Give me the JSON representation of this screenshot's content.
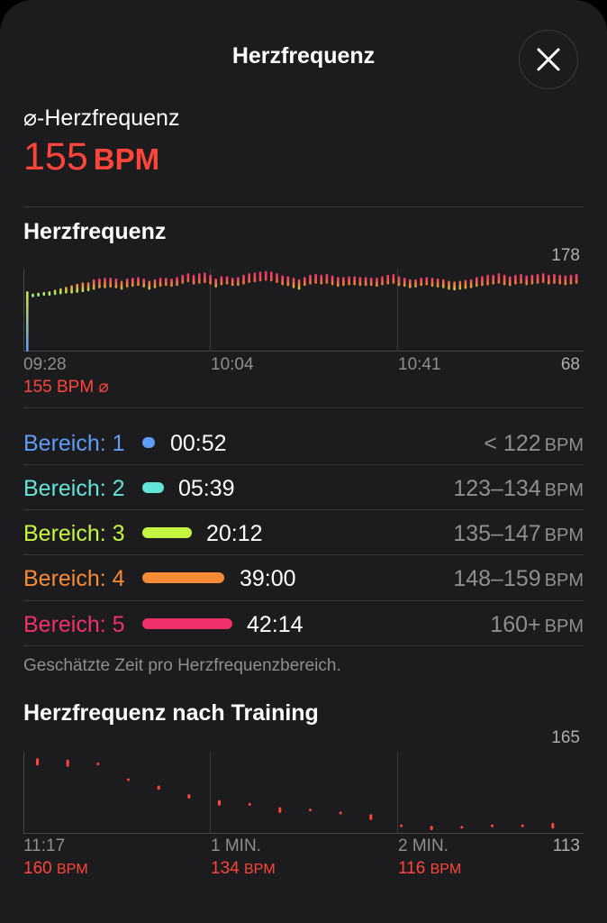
{
  "header": {
    "title": "Herzfrequenz",
    "close_icon": "close-icon"
  },
  "average": {
    "label": "⌀-Herzfrequenz",
    "value": "155",
    "unit": "BPM"
  },
  "hr_section": {
    "title": "Herzfrequenz",
    "max_label": "178",
    "min_label": "68",
    "time_labels": [
      "09:28",
      "10:04",
      "10:41"
    ],
    "avg_caption": "155 BPM ⌀"
  },
  "zones": [
    {
      "label": "Bereich: 1",
      "time": "00:52",
      "range": "< 122",
      "unit": "BPM",
      "color": "#5e9cf5",
      "fraction": 0.01
    },
    {
      "label": "Bereich: 2",
      "time": "05:39",
      "range": "123–134",
      "unit": "BPM",
      "color": "#64e3d9",
      "fraction": 0.05
    },
    {
      "label": "Bereich: 3",
      "time": "20:12",
      "range": "135–147",
      "unit": "BPM",
      "color": "#c6f542",
      "fraction": 0.19
    },
    {
      "label": "Bereich: 4",
      "time": "39:00",
      "range": "148–159",
      "unit": "BPM",
      "color": "#f58b34",
      "fraction": 0.36
    },
    {
      "label": "Bereich: 5",
      "time": "42:14",
      "range": "160+",
      "unit": "BPM",
      "color": "#f0306a",
      "fraction": 0.39
    }
  ],
  "footnote": "Geschätzte Zeit pro Herzfrequenzbereich.",
  "recovery": {
    "title": "Herzfrequenz nach Training",
    "max_label": "165",
    "min_label": "113",
    "time_labels": [
      "11:17",
      "1 MIN.",
      "2 MIN."
    ],
    "values": [
      {
        "bpm": "160",
        "unit": "BPM"
      },
      {
        "bpm": "134",
        "unit": "BPM"
      },
      {
        "bpm": "116",
        "unit": "BPM"
      }
    ]
  },
  "chart_data": [
    {
      "type": "bar",
      "title": "Herzfrequenz",
      "ylim": [
        68,
        178
      ],
      "x_ticks": [
        "09:28",
        "10:04",
        "10:41"
      ],
      "series": [
        {
          "values": [
            [
              68,
              148
            ],
            [
              140,
              145
            ],
            [
              141,
              146
            ],
            [
              142,
              147
            ],
            [
              142,
              148
            ],
            [
              143,
              150
            ],
            [
              144,
              152
            ],
            [
              145,
              154
            ],
            [
              145,
              156
            ],
            [
              146,
              158
            ],
            [
              147,
              160
            ],
            [
              148,
              160
            ],
            [
              150,
              164
            ],
            [
              152,
              165
            ],
            [
              152,
              166
            ],
            [
              153,
              166
            ],
            [
              152,
              165
            ],
            [
              150,
              162
            ],
            [
              153,
              165
            ],
            [
              154,
              166
            ],
            [
              155,
              167
            ],
            [
              153,
              165
            ],
            [
              150,
              162
            ],
            [
              152,
              164
            ],
            [
              154,
              166
            ],
            [
              155,
              166
            ],
            [
              154,
              165
            ],
            [
              155,
              167
            ],
            [
              158,
              170
            ],
            [
              160,
              172
            ],
            [
              157,
              170
            ],
            [
              158,
              172
            ],
            [
              159,
              173
            ],
            [
              157,
              170
            ],
            [
              153,
              165
            ],
            [
              156,
              168
            ],
            [
              157,
              168
            ],
            [
              155,
              166
            ],
            [
              155,
              167
            ],
            [
              157,
              170
            ],
            [
              159,
              172
            ],
            [
              160,
              173
            ],
            [
              161,
              174
            ],
            [
              162,
              175
            ],
            [
              161,
              174
            ],
            [
              159,
              172
            ],
            [
              156,
              169
            ],
            [
              155,
              168
            ],
            [
              152,
              166
            ],
            [
              150,
              164
            ],
            [
              155,
              167
            ],
            [
              157,
              170
            ],
            [
              158,
              171
            ],
            [
              157,
              170
            ],
            [
              158,
              171
            ],
            [
              156,
              169
            ],
            [
              154,
              167
            ],
            [
              155,
              167
            ],
            [
              156,
              168
            ],
            [
              156,
              168
            ],
            [
              155,
              167
            ],
            [
              155,
              167
            ],
            [
              155,
              166
            ],
            [
              154,
              166
            ],
            [
              156,
              168
            ],
            [
              157,
              170
            ],
            [
              158,
              171
            ],
            [
              155,
              168
            ],
            [
              154,
              166
            ],
            [
              152,
              164
            ],
            [
              153,
              164
            ],
            [
              155,
              166
            ],
            [
              156,
              167
            ],
            [
              154,
              166
            ],
            [
              153,
              165
            ],
            [
              152,
              164
            ],
            [
              150,
              162
            ],
            [
              149,
              161
            ],
            [
              150,
              162
            ],
            [
              151,
              163
            ],
            [
              152,
              164
            ],
            [
              154,
              167
            ],
            [
              155,
              168
            ],
            [
              156,
              170
            ],
            [
              157,
              170
            ],
            [
              158,
              172
            ],
            [
              156,
              170
            ],
            [
              155,
              168
            ],
            [
              157,
              170
            ],
            [
              158,
              171
            ],
            [
              156,
              169
            ],
            [
              157,
              170
            ],
            [
              158,
              171
            ],
            [
              159,
              172
            ],
            [
              157,
              170
            ],
            [
              158,
              171
            ],
            [
              157,
              170
            ],
            [
              156,
              169
            ],
            [
              157,
              170
            ],
            [
              158,
              171
            ]
          ]
        }
      ]
    },
    {
      "type": "bar",
      "title": "Herzfrequenz nach Training",
      "ylim": [
        113,
        165
      ],
      "x_ticks": [
        "11:17",
        "1 MIN.",
        "2 MIN."
      ],
      "series": [
        {
          "values": [
            [
              158,
              163
            ],
            [
              157,
              162
            ],
            [
              159,
              160
            ],
            [
              148,
              149
            ],
            [
              141,
              144
            ],
            [
              135,
              138
            ],
            [
              130,
              134
            ],
            [
              130,
              132
            ],
            [
              125,
              129
            ],
            [
              127,
              128
            ],
            [
              124,
              126
            ],
            [
              120,
              124
            ],
            [
              116,
              117
            ],
            [
              113,
              116
            ],
            [
              115,
              116
            ],
            [
              115,
              117
            ],
            [
              115,
              117
            ],
            [
              114,
              118
            ]
          ]
        }
      ]
    }
  ]
}
